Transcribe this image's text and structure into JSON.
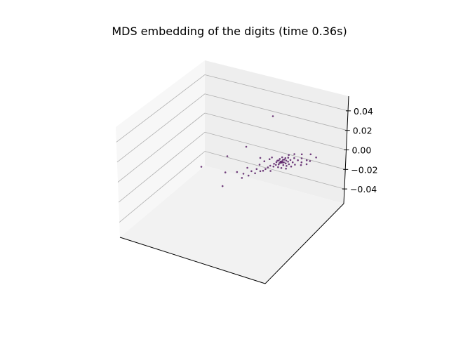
{
  "chart_data": {
    "type": "scatter",
    "projection": "3d",
    "title": "MDS embedding of the digits (time 0.36s)",
    "xlabel": "",
    "ylabel": "",
    "zlabel": "",
    "x_tick_labels": [],
    "y_tick_labels": [],
    "z_tick_labels": [
      "−0.04",
      "−0.02",
      "0.00",
      "0.02",
      "0.04"
    ],
    "z_ticks": [
      -0.04,
      -0.02,
      0.0,
      0.02,
      0.04
    ],
    "zlim": [
      -0.055,
      0.055
    ],
    "grid": true,
    "colormap": "viridis",
    "marker_color": "#440154",
    "pane_colors": {
      "floor": "#f2f2f2",
      "left": "#f7f7f7",
      "back": "#eeeeee"
    },
    "series": [
      {
        "points": [
          [
            0.0,
            0.0
          ],
          [
            0.01,
            0.0
          ],
          [
            0.0,
            0.01
          ],
          [
            -0.01,
            0.01
          ],
          [
            0.02,
            -0.01
          ],
          [
            0.01,
            0.01
          ],
          [
            -0.01,
            -0.01
          ],
          [
            0.03,
            -0.01
          ],
          [
            -0.02,
            0.02
          ],
          [
            0.02,
            0.01
          ],
          [
            -0.03,
            0.0
          ],
          [
            0.04,
            0.0
          ],
          [
            0.0,
            -0.02
          ],
          [
            -0.02,
            -0.01
          ],
          [
            0.05,
            0.01
          ],
          [
            -0.04,
            0.02
          ],
          [
            0.03,
            0.02
          ],
          [
            0.06,
            -0.02
          ],
          [
            -0.05,
            0.01
          ],
          [
            0.01,
            0.03
          ],
          [
            -0.06,
            0.03
          ],
          [
            0.07,
            0.0
          ],
          [
            0.02,
            -0.03
          ],
          [
            -0.03,
            0.04
          ],
          [
            0.05,
            0.03
          ],
          [
            -0.08,
            0.02
          ],
          [
            0.08,
            0.02
          ],
          [
            0.04,
            -0.02
          ],
          [
            -0.1,
            0.03
          ],
          [
            0.1,
            -0.01
          ],
          [
            -0.12,
            0.04
          ],
          [
            0.12,
            0.01
          ],
          [
            -0.14,
            0.05
          ],
          [
            0.09,
            0.04
          ],
          [
            -0.16,
            0.05
          ],
          [
            0.15,
            0.0
          ],
          [
            -0.2,
            0.06
          ],
          [
            0.18,
            0.02
          ],
          [
            -0.25,
            0.07
          ],
          [
            -0.3,
            0.08
          ],
          [
            -0.4,
            0.02
          ],
          [
            -0.55,
            -0.05
          ],
          [
            -0.35,
            -0.1
          ],
          [
            -0.2,
            -0.15
          ],
          [
            0.05,
            -0.35
          ],
          [
            -0.45,
            0.12
          ],
          [
            0.02,
            0.06
          ],
          [
            -0.07,
            -0.03
          ],
          [
            0.11,
            -0.04
          ],
          [
            0.13,
            0.05
          ],
          [
            -0.11,
            -0.02
          ],
          [
            0.06,
            0.05
          ],
          [
            -0.15,
            0.0
          ],
          [
            0.16,
            -0.03
          ],
          [
            -0.18,
            0.03
          ],
          [
            0.2,
            0.03
          ],
          [
            -0.22,
            0.04
          ],
          [
            0.22,
            -0.02
          ],
          [
            -0.28,
            0.05
          ],
          [
            0.25,
            0.01
          ],
          [
            -0.09,
            0.06
          ],
          [
            0.14,
            0.03
          ],
          [
            -0.13,
            -0.05
          ],
          [
            0.17,
            0.05
          ],
          [
            -0.24,
            0.01
          ],
          [
            -0.32,
            0.03
          ],
          [
            0.03,
            0.04
          ],
          [
            -0.01,
            0.05
          ],
          [
            0.07,
            -0.04
          ],
          [
            -0.05,
            -0.04
          ]
        ]
      }
    ]
  }
}
